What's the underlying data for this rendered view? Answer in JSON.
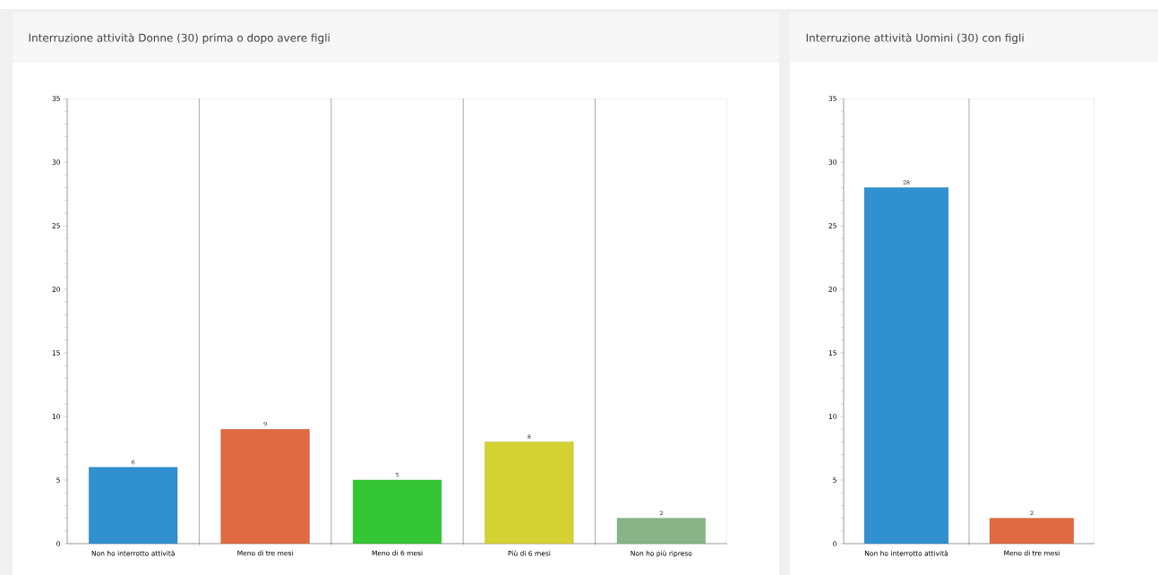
{
  "chart_data": [
    {
      "type": "bar",
      "title": "Interruzione attività Donne (30) prima o dopo avere figli",
      "categories": [
        "Non ho interrotto attività",
        "Meno di tre mesi",
        "Meno di 6 mesi",
        "Più di 6 mesi",
        "Non ho più ripreso"
      ],
      "values": [
        6,
        9,
        5,
        8,
        2
      ],
      "colors": [
        "#3090d0",
        "#e06a42",
        "#34c634",
        "#d4d232",
        "#88b488"
      ],
      "ylim": [
        0,
        35
      ],
      "yticks": [
        0,
        5,
        10,
        15,
        20,
        25,
        30,
        35
      ],
      "grid": "x",
      "data_labels": true
    },
    {
      "type": "bar",
      "title": "Interruzione attività Uomini (30) con figli",
      "categories": [
        "Non ho interrotto attività",
        "Meno di tre mesi"
      ],
      "values": [
        28,
        2
      ],
      "colors": [
        "#3090d0",
        "#e06a42"
      ],
      "ylim": [
        0,
        35
      ],
      "yticks": [
        0,
        5,
        10,
        15,
        20,
        25,
        30,
        35
      ],
      "grid": "x",
      "data_labels": true
    }
  ]
}
